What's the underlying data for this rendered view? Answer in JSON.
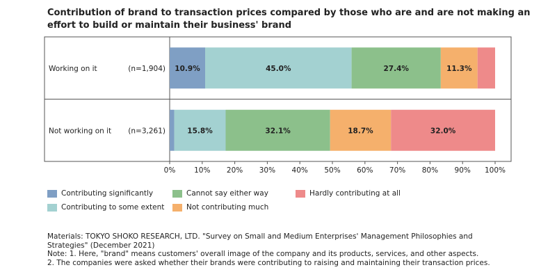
{
  "title": "Contribution of brand to transaction prices compared by those who are and are not making an effort to build or maintain their business' brand",
  "chart_data": {
    "type": "bar",
    "orientation": "horizontal",
    "stacked": true,
    "categories": [
      {
        "label": "Working on it",
        "n": "(n=1,904)"
      },
      {
        "label": "Not working on it",
        "n": "(n=3,261)"
      }
    ],
    "series": [
      {
        "name": "Contributing significantly",
        "color": "#7f9fc4",
        "values": [
          10.9,
          1.4
        ],
        "labels": [
          "10.9%",
          ""
        ]
      },
      {
        "name": "Contributing to some extent",
        "color": "#a3d1d1",
        "values": [
          45.0,
          15.8
        ],
        "labels": [
          "45.0%",
          "15.8%"
        ]
      },
      {
        "name": "Cannot say either way",
        "color": "#8cc08b",
        "values": [
          27.4,
          32.1
        ],
        "labels": [
          "27.4%",
          "32.1%"
        ]
      },
      {
        "name": "Not contributing much",
        "color": "#f5b06c",
        "values": [
          11.3,
          18.7
        ],
        "labels": [
          "11.3%",
          "18.7%"
        ]
      },
      {
        "name": "Hardly contributing at all",
        "color": "#ee8a8a",
        "values": [
          5.4,
          32.0
        ],
        "labels": [
          "",
          "32.0%"
        ]
      }
    ],
    "xlim": [
      0,
      100
    ],
    "xticks": [
      "0%",
      "10%",
      "20%",
      "30%",
      "40%",
      "50%",
      "60%",
      "70%",
      "80%",
      "90%",
      "100%"
    ],
    "legend_position": "bottom-left"
  },
  "notes": {
    "materials_1": "Materials: TOKYO SHOKO RESEARCH, LTD. \"Survey on Small and Medium Enterprises' Management Philosophies and",
    "materials_2": "Strategies\" (December 2021)",
    "note_1": "Note:  1. Here, \"brand\" means customers' overall image of the company and its products, services, and other aspects.",
    "note_2": "2. The companies were asked whether their brands were contributing to raising and maintaining their transaction prices."
  }
}
